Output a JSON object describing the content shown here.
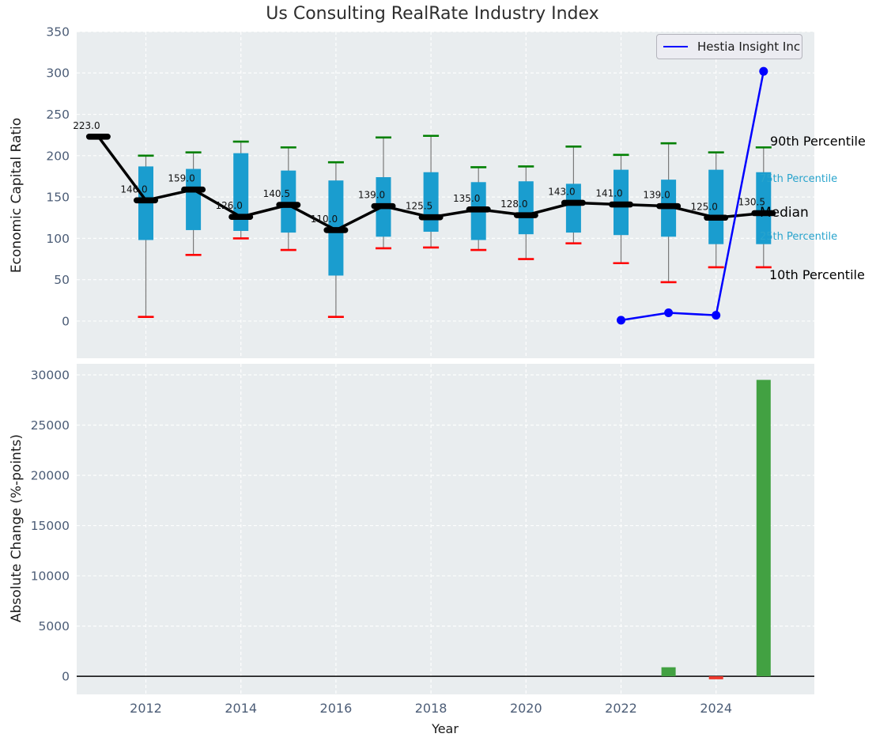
{
  "title": "Us Consulting RealRate Industry Index",
  "axes": {
    "top_ylabel": "Economic Capital Ratio",
    "bottom_ylabel": "Absolute Change (%-points)",
    "xlabel": "Year"
  },
  "legend": {
    "label": "Hestia Insight Inc"
  },
  "percentile_labels": {
    "p90": "90th Percentile",
    "p75": "75th Percentile",
    "median": "Median",
    "p25": "25th Percentile",
    "p10": "10th Percentile"
  },
  "colors": {
    "box_fill": "#1a9dcf",
    "p90_cap": "#008000",
    "p10_cap": "#ff0000",
    "whisker": "#7a7a7a",
    "median": "#000000",
    "company_line": "#0000ff",
    "bar_positive": "#42a142",
    "bar_negative": "#f03a2e",
    "plot_bg": "#e9edef",
    "grid": "#ffffff",
    "tick_label": "#4c5d77",
    "percentile_label_accent": "#29a4cd"
  },
  "chart_data": [
    {
      "type": "boxplot",
      "title": "Us Consulting RealRate Industry Index",
      "ylabel": "Economic Capital Ratio",
      "ylim": [
        -45,
        350
      ],
      "y_ticks": [
        0,
        50,
        100,
        150,
        200,
        250,
        300,
        350
      ],
      "x_ticks": [
        2012,
        2014,
        2016,
        2018,
        2020,
        2022,
        2024
      ],
      "grid": true,
      "legend_position": "upper right",
      "years": [
        2011,
        2012,
        2013,
        2014,
        2015,
        2016,
        2017,
        2018,
        2019,
        2020,
        2021,
        2022,
        2023,
        2024,
        2025
      ],
      "p10": [
        null,
        5,
        80,
        100,
        86,
        5,
        88,
        89,
        86,
        75,
        94,
        70,
        47,
        65,
        65
      ],
      "p25": [
        null,
        98,
        110,
        109,
        107,
        55,
        102,
        108,
        98,
        105,
        107,
        104,
        102,
        93,
        93
      ],
      "median": [
        223,
        146,
        159,
        126,
        140.5,
        110,
        139,
        125.5,
        135,
        128,
        143,
        141,
        139,
        125,
        130.5
      ],
      "p75": [
        null,
        187,
        184,
        203,
        182,
        170,
        174,
        180,
        168,
        169,
        166,
        183,
        171,
        183,
        180
      ],
      "p90": [
        null,
        200,
        204,
        217,
        210,
        192,
        222,
        224,
        186,
        187,
        211,
        201,
        215,
        204,
        210
      ],
      "series": [
        {
          "name": "Hestia Insight Inc",
          "x": [
            2022,
            2023,
            2024,
            2025
          ],
          "y": [
            1,
            10,
            7,
            302
          ]
        }
      ]
    },
    {
      "type": "bar",
      "ylabel": "Absolute Change (%-points)",
      "xlabel": "Year",
      "ylim": [
        -1800,
        31100
      ],
      "y_ticks": [
        0,
        5000,
        10000,
        15000,
        20000,
        25000,
        30000
      ],
      "x_ticks": [
        2012,
        2014,
        2016,
        2018,
        2020,
        2022,
        2024
      ],
      "grid": true,
      "x": [
        2023,
        2024,
        2025
      ],
      "values": [
        900,
        -300,
        29500
      ]
    }
  ]
}
